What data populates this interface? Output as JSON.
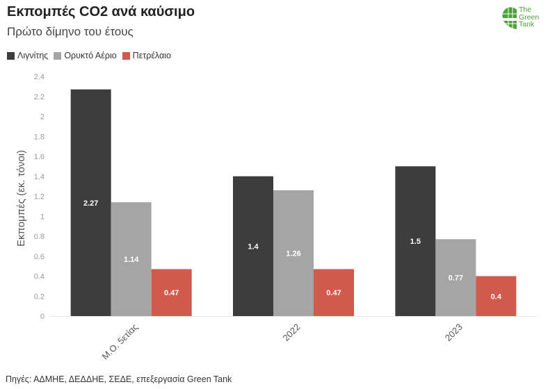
{
  "header": {
    "title": "Εκπομπές CO2 ανά καύσιμο",
    "subtitle": "Πρώτο δίμηνο του έτους"
  },
  "logo": {
    "line1": "The",
    "line2": "Green",
    "line3": "Tank"
  },
  "source": "Πηγές: ΑΔΜΗΕ, ΔΕΔΔΗΕ, ΣΕΔΕ, επεξεργασία Green Tank",
  "chart_data": {
    "type": "bar",
    "title": "Εκπομπές CO2 ανά καύσιμο",
    "subtitle": "Πρώτο δίμηνο του έτους",
    "xlabel": "",
    "ylabel": "Εκπομπές (εκ. τόνοι)",
    "ylim": [
      0,
      2.4
    ],
    "yticks": [
      "0",
      "0.2",
      "0.4",
      "0.6",
      "0.8",
      "1",
      "1.2",
      "1.4",
      "1.6",
      "1.8",
      "2",
      "2.2",
      "2.4"
    ],
    "categories": [
      "Μ.Ο. 5ετίας",
      "2022",
      "2023"
    ],
    "series": [
      {
        "name": "Λιγνίτης",
        "color": "#3d3d3d",
        "values": [
          2.27,
          1.4,
          1.5
        ],
        "labels": [
          "2.27",
          "1.4",
          "1.5"
        ]
      },
      {
        "name": "Ορυκτό Αέριο",
        "color": "#a5a5a5",
        "values": [
          1.14,
          1.26,
          0.77
        ],
        "labels": [
          "1.14",
          "1.26",
          "0.77"
        ]
      },
      {
        "name": "Πετρέλαιο",
        "color": "#d05a4b",
        "values": [
          0.47,
          0.47,
          0.4
        ],
        "labels": [
          "0.47",
          "0.47",
          "0.4"
        ]
      }
    ],
    "legend_position": "top-left",
    "grid": false
  }
}
